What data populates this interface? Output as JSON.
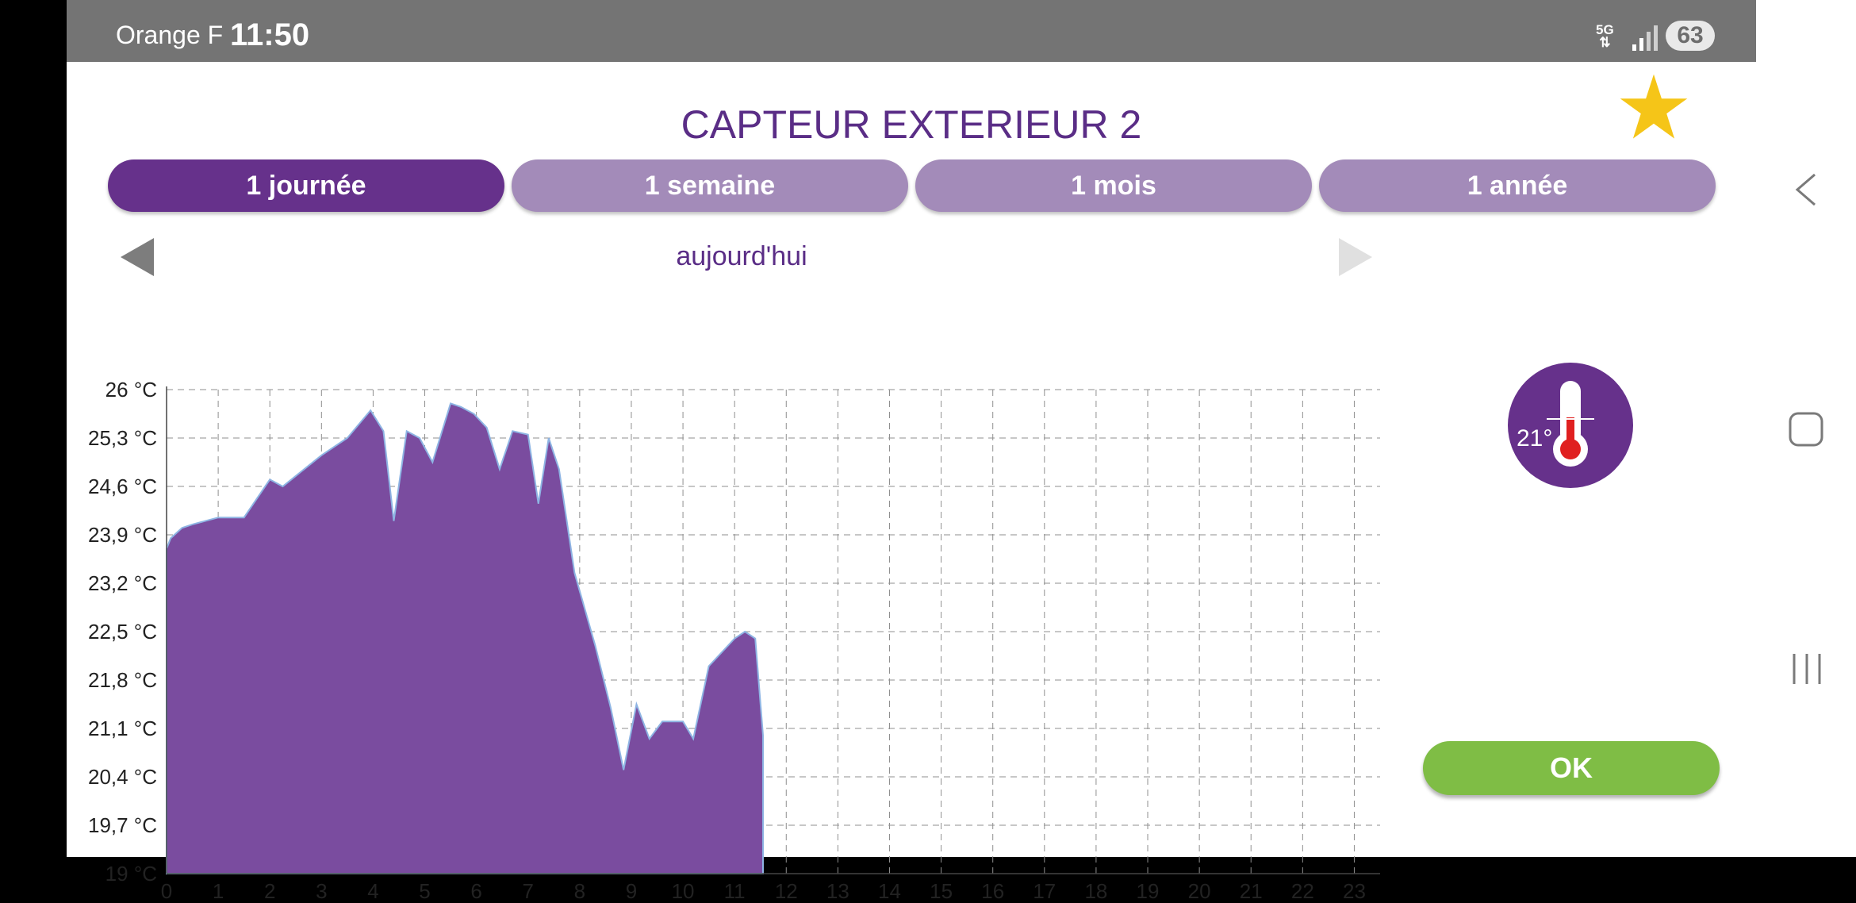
{
  "status_bar": {
    "carrier": "Orange F",
    "time": "11:50",
    "network": "5G",
    "battery": "63"
  },
  "header": {
    "title": "CAPTEUR EXTERIEUR 2",
    "favorite_icon": "star-icon",
    "favorite_color": "#f5c518"
  },
  "tabs": [
    {
      "label": "1 journée",
      "active": true
    },
    {
      "label": "1 semaine",
      "active": false
    },
    {
      "label": "1 mois",
      "active": false
    },
    {
      "label": "1 année",
      "active": false
    }
  ],
  "period": {
    "label": "aujourd'hui"
  },
  "sensor": {
    "reading": "21°",
    "icon": "thermometer-icon"
  },
  "ok_label": "OK",
  "colors": {
    "accent": "#66318b",
    "tab_inactive": "#a38bb9",
    "area_fill": "#7a4c9f",
    "ok": "#7fbd45"
  },
  "chart_data": {
    "type": "area",
    "xlabel": "",
    "ylabel": "",
    "xlim": [
      0,
      23.5
    ],
    "ylim": [
      19,
      26
    ],
    "x_ticks": [
      "0",
      "1",
      "2",
      "3",
      "4",
      "5",
      "6",
      "7",
      "8",
      "9",
      "10",
      "11",
      "12",
      "13",
      "14",
      "15",
      "16",
      "17",
      "18",
      "19",
      "20",
      "21",
      "22",
      "23"
    ],
    "y_ticks": [
      "19 °C",
      "19,7 °C",
      "20,4 °C",
      "21,1 °C",
      "21,8 °C",
      "22,5 °C",
      "23,2 °C",
      "23,9 °C",
      "24,6 °C",
      "25,3 °C",
      "26 °C"
    ],
    "grid": true,
    "series": [
      {
        "x": [
          0,
          0.08,
          0.3,
          0.5,
          0.75,
          1,
          1.25,
          1.5,
          2,
          2.25,
          2.5,
          3,
          3.5,
          3.95,
          4.2,
          4.4,
          4.65,
          4.9,
          5.15,
          5.5,
          5.7,
          5.95,
          6.2,
          6.45,
          6.7,
          7,
          7.2,
          7.4,
          7.6,
          7.9,
          8.3,
          8.6,
          8.85,
          9.1,
          9.35,
          9.6,
          10,
          10.2,
          10.5,
          11,
          11.2,
          11.4,
          11.55
        ],
        "y": [
          23.7,
          23.85,
          24.0,
          24.05,
          24.1,
          24.15,
          24.15,
          24.15,
          24.7,
          24.6,
          24.75,
          25.05,
          25.3,
          25.7,
          25.4,
          24.1,
          25.4,
          25.3,
          24.95,
          25.8,
          25.75,
          25.65,
          25.45,
          24.85,
          25.4,
          25.35,
          24.35,
          25.3,
          24.85,
          23.35,
          22.3,
          21.4,
          20.5,
          21.45,
          20.95,
          21.2,
          21.2,
          20.95,
          22.0,
          22.4,
          22.5,
          22.4,
          21.0
        ]
      }
    ]
  }
}
